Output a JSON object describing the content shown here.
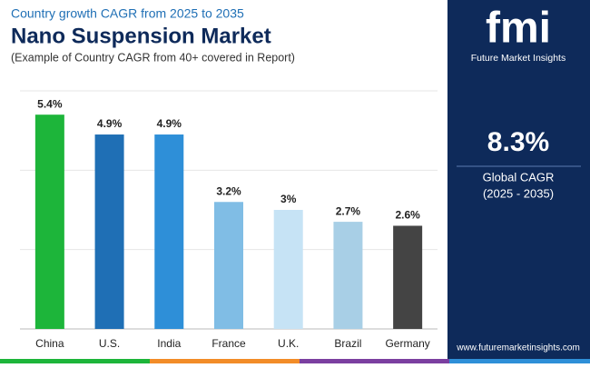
{
  "chart_data": {
    "type": "bar",
    "kicker": "Country growth CAGR from 2025 to 2035",
    "title": "Nano Suspension Market",
    "subtitle": "(Example of Country CAGR from 40+ covered in Report)",
    "categories": [
      "China",
      "U.S.",
      "India",
      "France",
      "U.K.",
      "Brazil",
      "Germany"
    ],
    "values": [
      5.4,
      4.9,
      4.9,
      3.2,
      3,
      2.7,
      2.6
    ],
    "value_labels": [
      "5.4%",
      "4.9%",
      "4.9%",
      "3.2%",
      "3%",
      "2.7%",
      "2.6%"
    ],
    "colors": [
      "#1db53a",
      "#1f6fb5",
      "#2e8fd8",
      "#80bde5",
      "#c6e3f5",
      "#a8cfe6",
      "#444444"
    ],
    "ylim": [
      0,
      6
    ],
    "yticks": [
      0,
      2,
      4,
      6
    ],
    "grid": true
  },
  "sidebar": {
    "brand": "fmi",
    "tagline": "Future Market Insights",
    "cagr": "8.3%",
    "cagr_label": "Global CAGR",
    "period": "(2025 - 2035)",
    "website": "www.futuremarketinsights.com"
  }
}
